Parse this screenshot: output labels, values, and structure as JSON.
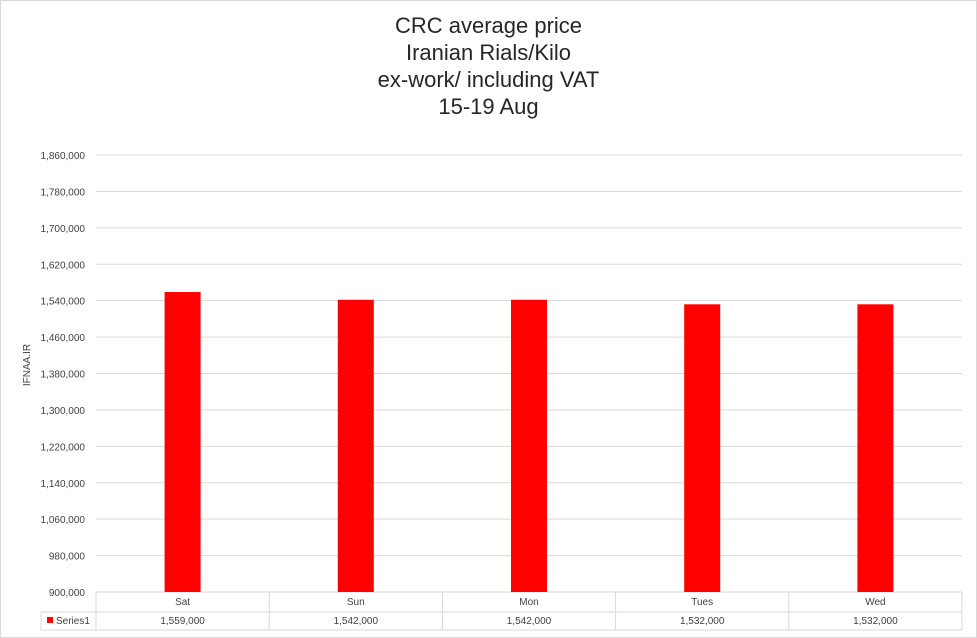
{
  "chart_data": {
    "type": "bar",
    "title_lines": [
      "CRC average price",
      "Iranian Rials/Kilo",
      "ex-work/ including VAT",
      "15-19 Aug"
    ],
    "ylabel": "IFNAA.IR",
    "categories": [
      "Sat",
      "Sun",
      "Mon",
      "Tues",
      "Wed"
    ],
    "series": [
      {
        "name": "Series1",
        "values": [
          1559000,
          1542000,
          1542000,
          1532000,
          1532000
        ],
        "color": "#ff0000"
      }
    ],
    "value_labels": [
      "1,559,000",
      "1,542,000",
      "1,542,000",
      "1,532,000",
      "1,532,000"
    ],
    "ylim": [
      900000,
      1860000
    ],
    "yticks": [
      900000,
      980000,
      1060000,
      1140000,
      1220000,
      1300000,
      1380000,
      1460000,
      1540000,
      1620000,
      1700000,
      1780000,
      1860000
    ],
    "ytick_labels": [
      "900,000",
      "980,000",
      "1,060,000",
      "1,140,000",
      "1,220,000",
      "1,300,000",
      "1,380,000",
      "1,460,000",
      "1,540,000",
      "1,620,000",
      "1,700,000",
      "1,780,000",
      "1,860,000"
    ],
    "grid": true,
    "legend": "data-table"
  }
}
